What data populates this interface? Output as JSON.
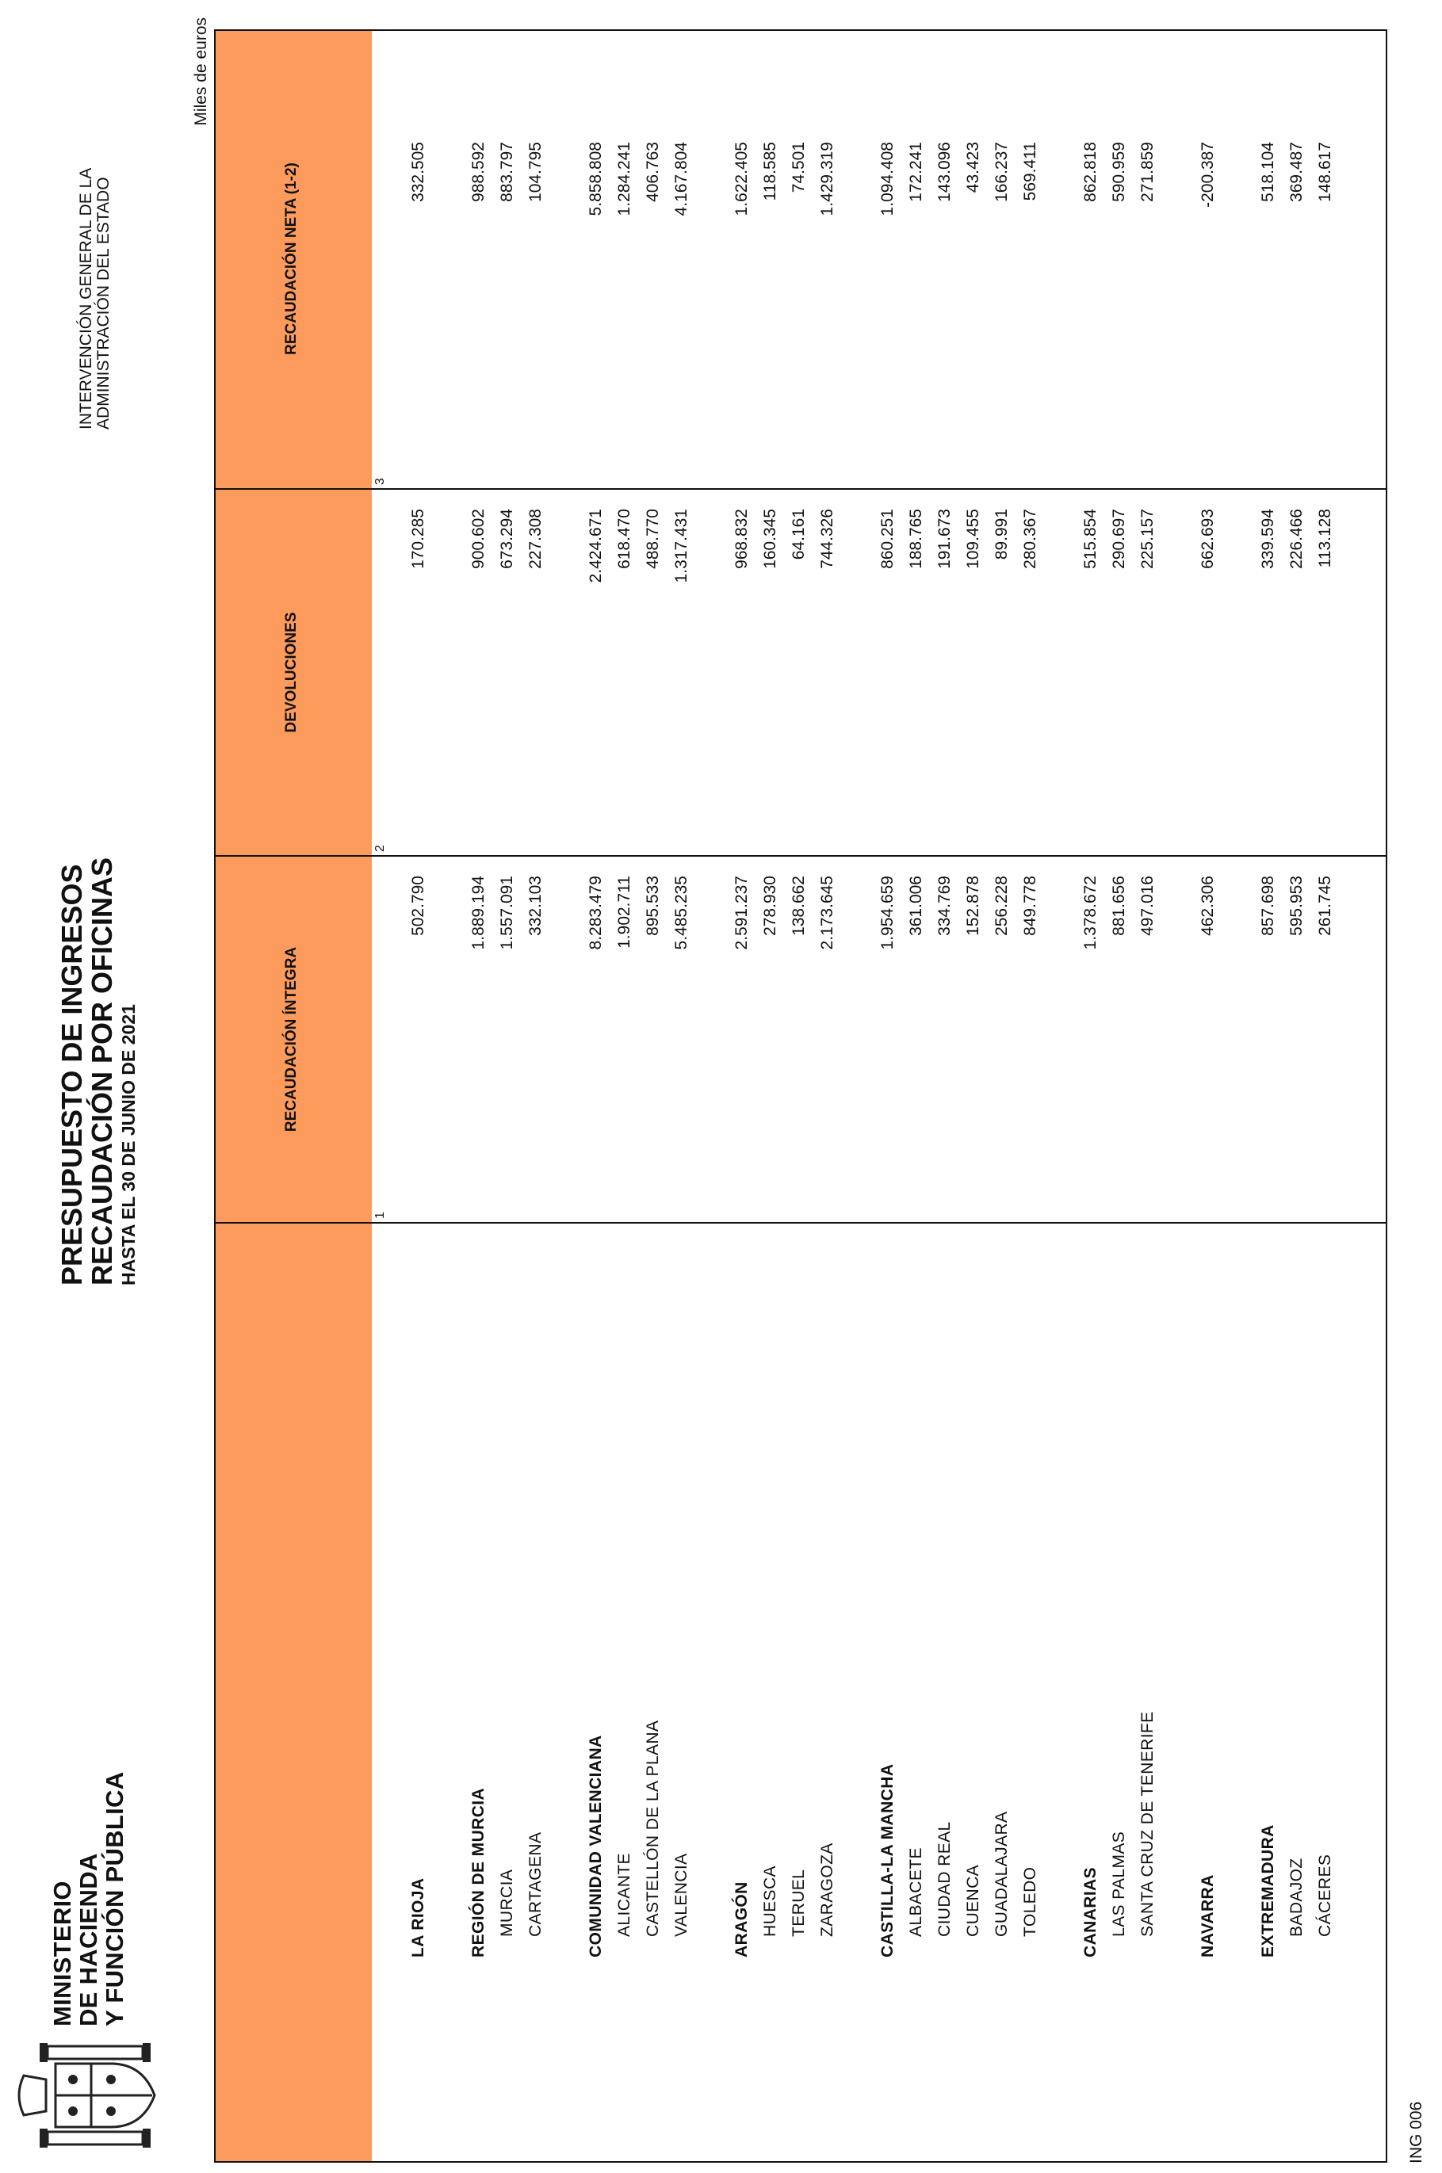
{
  "header": {
    "ministry_lines": [
      "MINISTERIO",
      "DE HACIENDA",
      "Y FUNCIÓN PÚBLICA"
    ],
    "title_line1": "PRESUPUESTO DE INGRESOS",
    "title_line2": "RECAUDACIÓN POR OFICINAS",
    "title_line3": "HASTA EL 30 DE JUNIO DE 2021",
    "intervencion_line1": "INTERVENCIÓN GENERAL DE LA",
    "intervencion_line2": "ADMINISTRACIÓN DEL ESTADO",
    "units": "Miles de euros"
  },
  "table": {
    "columns": [
      {
        "label": "RECAUDACIÓN ÍNTEGRA",
        "num": "1"
      },
      {
        "label": "DEVOLUCIONES",
        "num": "2"
      },
      {
        "label": "RECAUDACIÓN NETA (1-2)",
        "num": "3"
      }
    ],
    "rows": [
      {
        "kind": "region",
        "name": "LA RIOJA",
        "v1": "502.790",
        "v2": "170.285",
        "v3": "332.505"
      },
      {
        "kind": "spacer"
      },
      {
        "kind": "region",
        "name": "REGIÓN DE MURCIA",
        "v1": "1.889.194",
        "v2": "900.602",
        "v3": "988.592"
      },
      {
        "kind": "prov",
        "name": "MURCIA",
        "v1": "1.557.091",
        "v2": "673.294",
        "v3": "883.797"
      },
      {
        "kind": "prov",
        "name": "CARTAGENA",
        "v1": "332.103",
        "v2": "227.308",
        "v3": "104.795"
      },
      {
        "kind": "spacer"
      },
      {
        "kind": "region",
        "name": "COMUNIDAD VALENCIANA",
        "v1": "8.283.479",
        "v2": "2.424.671",
        "v3": "5.858.808"
      },
      {
        "kind": "prov",
        "name": "ALICANTE",
        "v1": "1.902.711",
        "v2": "618.470",
        "v3": "1.284.241"
      },
      {
        "kind": "prov",
        "name": "CASTELLÓN DE LA PLANA",
        "v1": "895.533",
        "v2": "488.770",
        "v3": "406.763"
      },
      {
        "kind": "prov",
        "name": "VALENCIA",
        "v1": "5.485.235",
        "v2": "1.317.431",
        "v3": "4.167.804"
      },
      {
        "kind": "spacer"
      },
      {
        "kind": "region",
        "name": "ARAGÓN",
        "v1": "2.591.237",
        "v2": "968.832",
        "v3": "1.622.405"
      },
      {
        "kind": "prov",
        "name": "HUESCA",
        "v1": "278.930",
        "v2": "160.345",
        "v3": "118.585"
      },
      {
        "kind": "prov",
        "name": "TERUEL",
        "v1": "138.662",
        "v2": "64.161",
        "v3": "74.501"
      },
      {
        "kind": "prov",
        "name": "ZARAGOZA",
        "v1": "2.173.645",
        "v2": "744.326",
        "v3": "1.429.319"
      },
      {
        "kind": "spacer"
      },
      {
        "kind": "region",
        "name": "CASTILLA-LA MANCHA",
        "v1": "1.954.659",
        "v2": "860.251",
        "v3": "1.094.408"
      },
      {
        "kind": "prov",
        "name": "ALBACETE",
        "v1": "361.006",
        "v2": "188.765",
        "v3": "172.241"
      },
      {
        "kind": "prov",
        "name": "CIUDAD REAL",
        "v1": "334.769",
        "v2": "191.673",
        "v3": "143.096"
      },
      {
        "kind": "prov",
        "name": "CUENCA",
        "v1": "152.878",
        "v2": "109.455",
        "v3": "43.423"
      },
      {
        "kind": "prov",
        "name": "GUADALAJARA",
        "v1": "256.228",
        "v2": "89.991",
        "v3": "166.237"
      },
      {
        "kind": "prov",
        "name": "TOLEDO",
        "v1": "849.778",
        "v2": "280.367",
        "v3": "569.411"
      },
      {
        "kind": "spacer"
      },
      {
        "kind": "region",
        "name": "CANARIAS",
        "v1": "1.378.672",
        "v2": "515.854",
        "v3": "862.818"
      },
      {
        "kind": "prov",
        "name": "LAS PALMAS",
        "v1": "881.656",
        "v2": "290.697",
        "v3": "590.959"
      },
      {
        "kind": "prov",
        "name": "SANTA CRUZ DE TENERIFE",
        "v1": "497.016",
        "v2": "225.157",
        "v3": "271.859"
      },
      {
        "kind": "spacer"
      },
      {
        "kind": "region",
        "name": "NAVARRA",
        "v1": "462.306",
        "v2": "662.693",
        "v3": "-200.387"
      },
      {
        "kind": "spacer"
      },
      {
        "kind": "region",
        "name": "EXTREMADURA",
        "v1": "857.698",
        "v2": "339.594",
        "v3": "518.104"
      },
      {
        "kind": "prov",
        "name": "BADAJOZ",
        "v1": "595.953",
        "v2": "226.466",
        "v3": "369.487"
      },
      {
        "kind": "prov",
        "name": "CÁCERES",
        "v1": "261.745",
        "v2": "113.128",
        "v3": "148.617"
      }
    ]
  },
  "footer": {
    "code": "ING 006"
  }
}
